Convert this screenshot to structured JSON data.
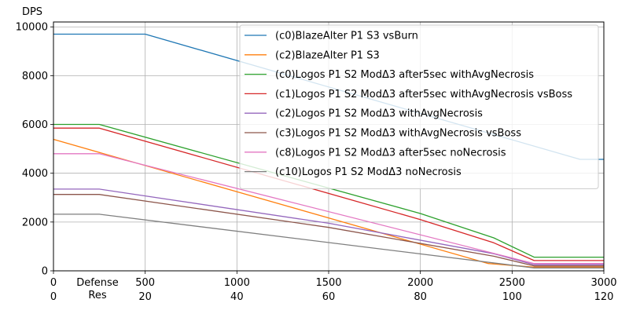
{
  "chart_data": {
    "type": "line",
    "title": "",
    "ylabel": "DPS",
    "xlabel_lines": [
      "Defense",
      "Res"
    ],
    "xlim": [
      0,
      3000
    ],
    "ylim": [
      0,
      10200
    ],
    "grid": true,
    "legend_position": "top-right",
    "x_ticks": [
      {
        "value": 0,
        "label": "0",
        "label2": "0"
      },
      {
        "value": 500,
        "label": "500",
        "label2": "20"
      },
      {
        "value": 1000,
        "label": "1000",
        "label2": "40"
      },
      {
        "value": 1500,
        "label": "1500",
        "label2": "60"
      },
      {
        "value": 2000,
        "label": "2000",
        "label2": "80"
      },
      {
        "value": 2500,
        "label": "2500",
        "label2": "100"
      },
      {
        "value": 3000,
        "label": "3000",
        "label2": "120"
      }
    ],
    "y_ticks": [
      {
        "value": 0,
        "label": "0"
      },
      {
        "value": 2000,
        "label": "2000"
      },
      {
        "value": 4000,
        "label": "4000"
      },
      {
        "value": 6000,
        "label": "6000"
      },
      {
        "value": 8000,
        "label": "8000"
      },
      {
        "value": 10000,
        "label": "10000"
      }
    ],
    "series": [
      {
        "name": "(c0)BlazeAlter P1 S3 vsBurn",
        "color": "#1f77b4",
        "points": [
          [
            0,
            9700
          ],
          [
            500,
            9700
          ],
          [
            2870,
            4570
          ],
          [
            3000,
            4570
          ]
        ]
      },
      {
        "name": "(c2)BlazeAlter P1 S3",
        "color": "#ff7f0e",
        "points": [
          [
            0,
            5390
          ],
          [
            2370,
            300
          ],
          [
            2620,
            150
          ],
          [
            3000,
            150
          ]
        ]
      },
      {
        "name": "(c0)Logos P1 S2 ModΔ3 after5sec withAvgNecrosis",
        "color": "#2ca02c",
        "points": [
          [
            0,
            6000
          ],
          [
            250,
            6000
          ],
          [
            2000,
            2350
          ],
          [
            2400,
            1350
          ],
          [
            2620,
            560
          ],
          [
            3000,
            560
          ]
        ]
      },
      {
        "name": "(c1)Logos P1 S2 ModΔ3 after5sec withAvgNecrosis vsBoss",
        "color": "#d62728",
        "points": [
          [
            0,
            5850
          ],
          [
            250,
            5850
          ],
          [
            2000,
            2100
          ],
          [
            2400,
            1150
          ],
          [
            2620,
            420
          ],
          [
            3000,
            420
          ]
        ]
      },
      {
        "name": "(c2)Logos P1 S2 ModΔ3 withAvgNecrosis",
        "color": "#9467bd",
        "points": [
          [
            0,
            3350
          ],
          [
            250,
            3350
          ],
          [
            1500,
            1950
          ],
          [
            2400,
            700
          ],
          [
            2620,
            250
          ],
          [
            3000,
            250
          ]
        ]
      },
      {
        "name": "(c3)Logos P1 S2 ModΔ3 withAvgNecrosis vsBoss",
        "color": "#8c564b",
        "points": [
          [
            0,
            3130
          ],
          [
            250,
            3130
          ],
          [
            1500,
            1780
          ],
          [
            2400,
            600
          ],
          [
            2620,
            200
          ],
          [
            3000,
            200
          ]
        ]
      },
      {
        "name": "(c8)Logos P1 S2 ModΔ3 after5sec noNecrosis",
        "color": "#e377c2",
        "points": [
          [
            0,
            4800
          ],
          [
            250,
            4800
          ],
          [
            2620,
            300
          ],
          [
            3000,
            300
          ]
        ]
      },
      {
        "name": "(c10)Logos P1 S2 ModΔ3 noNecrosis",
        "color": "#7f7f7f",
        "points": [
          [
            0,
            2320
          ],
          [
            250,
            2320
          ],
          [
            2620,
            120
          ],
          [
            3000,
            120
          ]
        ]
      }
    ]
  }
}
